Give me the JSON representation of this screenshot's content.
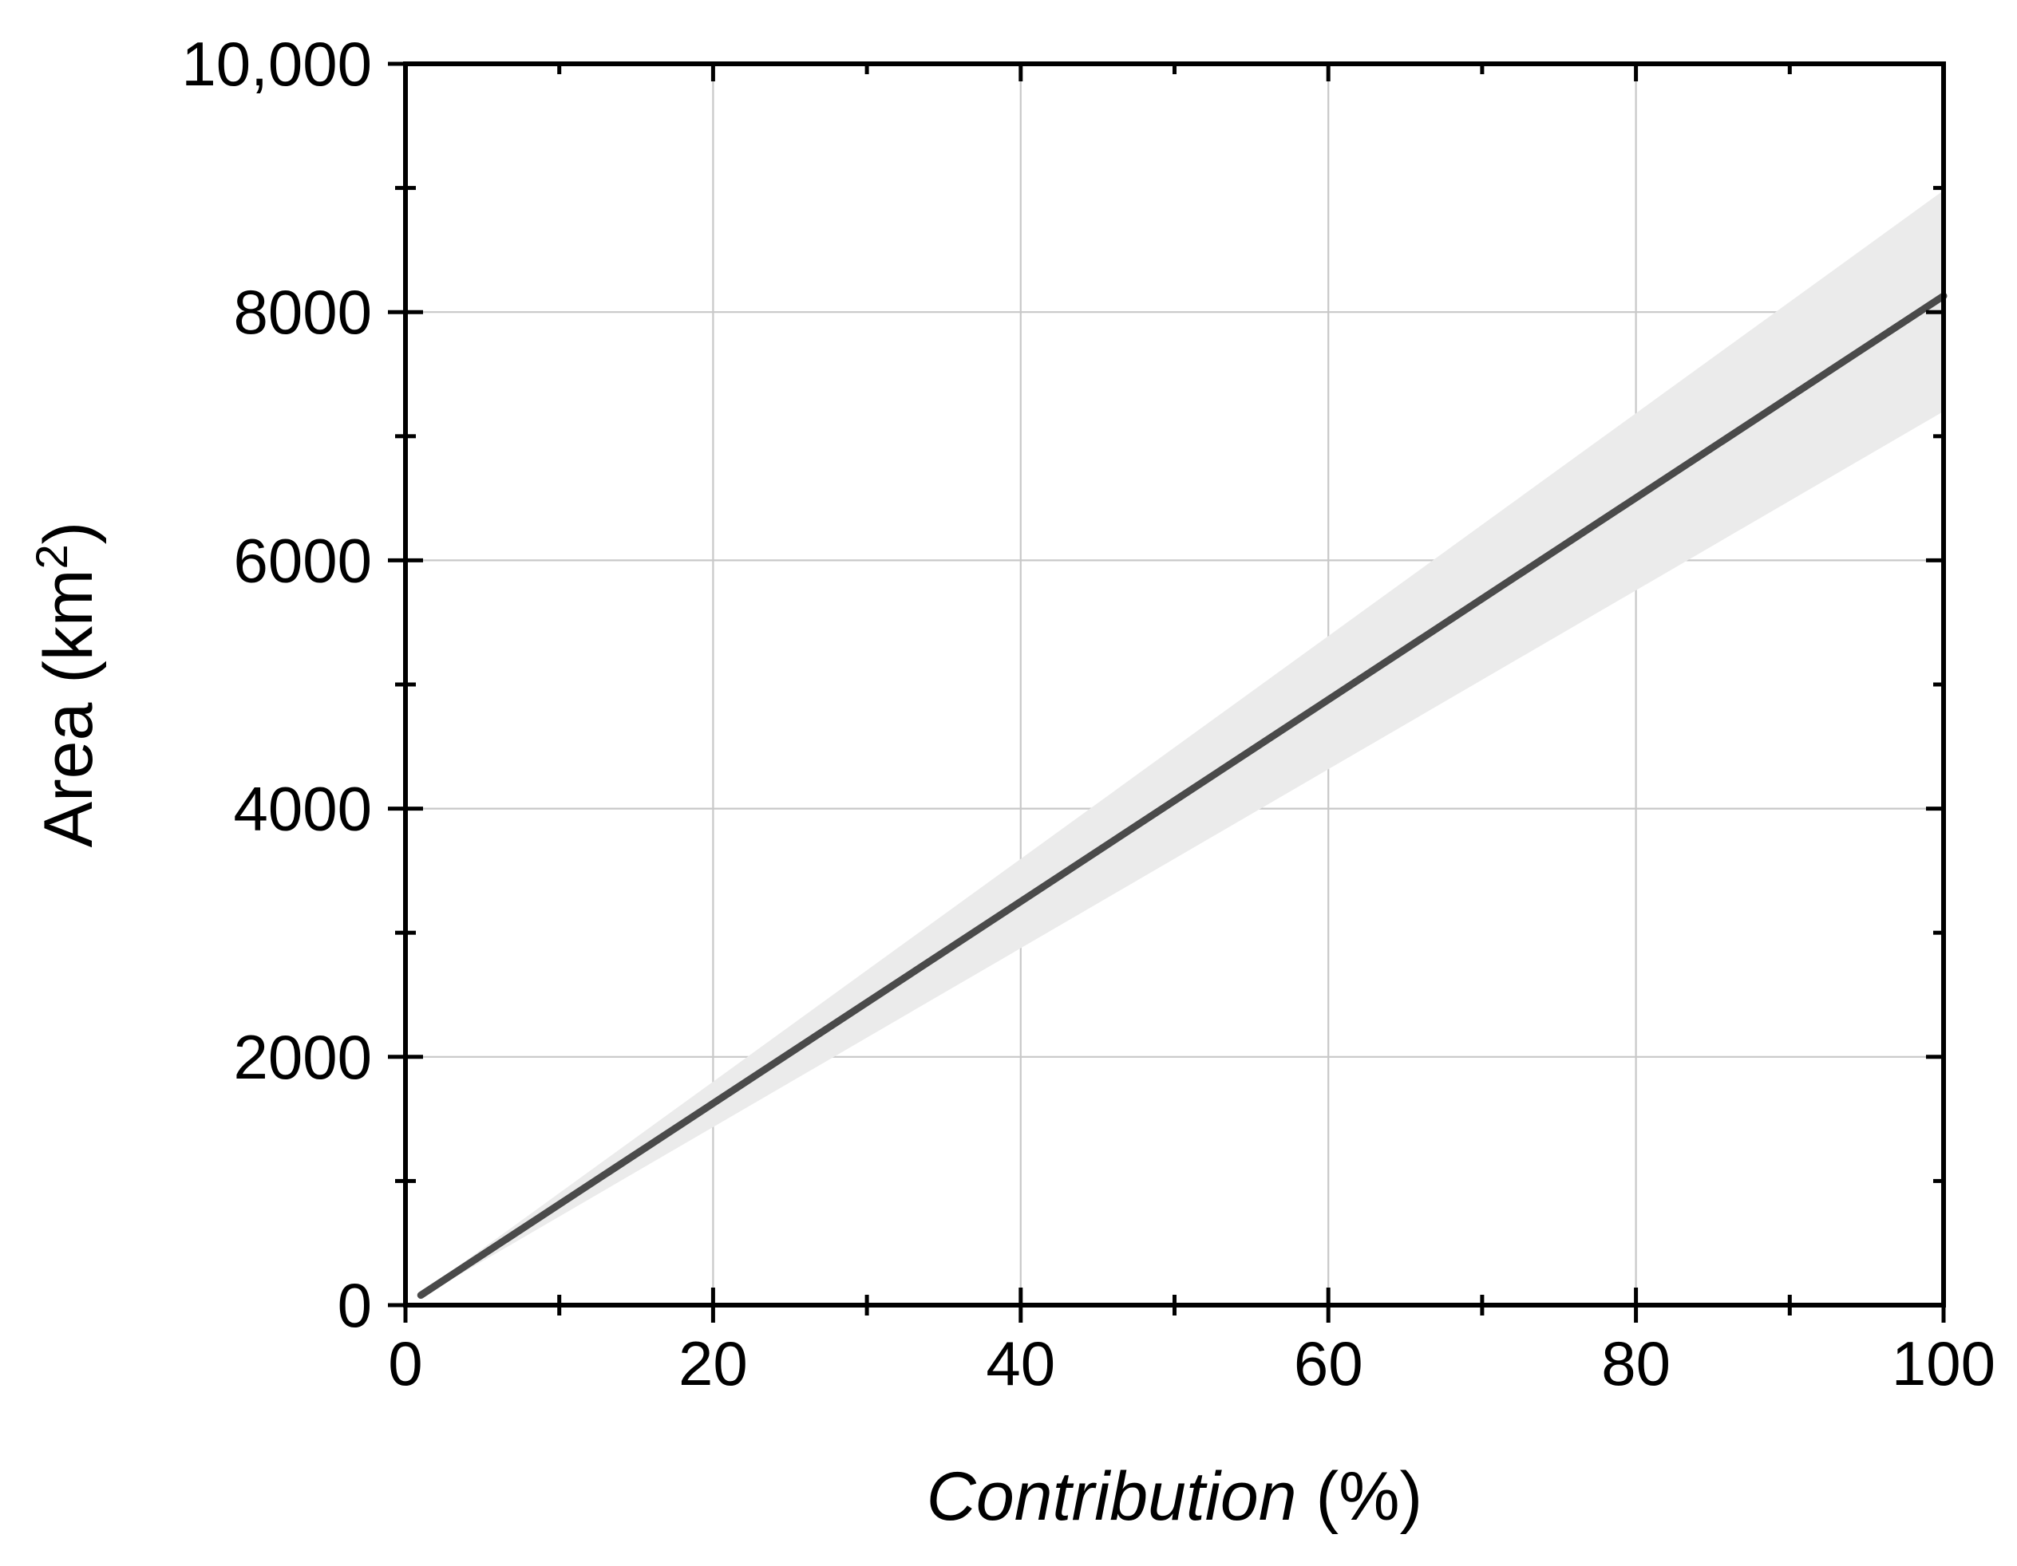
{
  "chart_data": {
    "type": "line",
    "title": "",
    "xlabel": "Contribution",
    "xlabel_unit": "(%)",
    "ylabel": "Area (km",
    "ylabel_sup": "2",
    "ylabel_close": ")",
    "xlim": [
      0,
      100
    ],
    "ylim": [
      0,
      10000
    ],
    "x_ticks": [
      0,
      20,
      40,
      60,
      80,
      100
    ],
    "x_tick_labels": [
      "0",
      "20",
      "40",
      "60",
      "80",
      "100"
    ],
    "x_minor_ticks": [
      10,
      30,
      50,
      70,
      90
    ],
    "y_ticks": [
      0,
      2000,
      4000,
      6000,
      8000,
      10000
    ],
    "y_tick_labels": [
      "0",
      "2000",
      "4000",
      "6000",
      "8000",
      "10,000"
    ],
    "y_minor_ticks": [
      1000,
      3000,
      5000,
      7000,
      9000
    ],
    "grid": true,
    "legend": "none",
    "series": [
      {
        "x": [
          1,
          100
        ],
        "y": [
          80,
          8130
        ],
        "color": "#4a4a4a"
      }
    ],
    "band": {
      "x": [
        1,
        100
      ],
      "upper": [
        95,
        8980
      ],
      "lower": [
        65,
        7200
      ],
      "color": "#ebebeb"
    }
  }
}
